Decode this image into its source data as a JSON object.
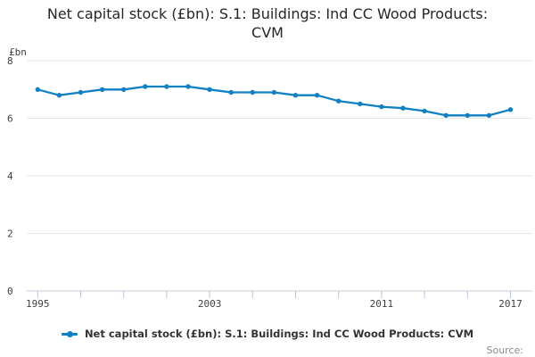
{
  "header": {
    "title": "Net capital stock (£bn): S.1: Buildings: Ind CC Wood Products: CVM"
  },
  "chart_data": {
    "type": "line",
    "title": "Net capital stock (£bn): S.1: Buildings: Ind CC Wood Products: CVM",
    "unit_label": "£bn",
    "x": [
      1995,
      1996,
      1997,
      1998,
      1999,
      2000,
      2001,
      2002,
      2003,
      2004,
      2005,
      2006,
      2007,
      2008,
      2009,
      2010,
      2011,
      2012,
      2013,
      2014,
      2015,
      2016,
      2017
    ],
    "series": [
      {
        "name": "Net capital stock (£bn): S.1: Buildings: Ind CC Wood Products: CVM",
        "values": [
          7.0,
          6.8,
          6.9,
          7.0,
          7.0,
          7.1,
          7.1,
          7.1,
          7.0,
          6.9,
          6.9,
          6.9,
          6.8,
          6.8,
          6.6,
          6.5,
          6.4,
          6.35,
          6.25,
          6.1,
          6.1,
          6.1,
          6.3
        ]
      }
    ],
    "ylim": [
      0,
      8
    ],
    "yticks": [
      0,
      2,
      4,
      6,
      8
    ],
    "xticks": [
      1995,
      1997,
      1999,
      2001,
      2003,
      2005,
      2007,
      2009,
      2011,
      2013,
      2015,
      2017
    ],
    "xtick_labels": [
      1995,
      2003,
      2011,
      2017
    ],
    "grid": "horizontal",
    "legend_position": "bottom",
    "marker": "circle"
  },
  "legend": {
    "label": "Net capital stock (£bn): S.1: Buildings: Ind CC Wood Products: CVM"
  },
  "footer": {
    "source_label": "Source:"
  },
  "colors": {
    "line": "#1181c6",
    "grid": "#e6e6e6",
    "axis": "#c9ced3",
    "tick": "#b4c3da",
    "tick_text": "#414042",
    "title_text": "#262626",
    "legend_text": "#333333",
    "source_text": "#8c8c8c"
  }
}
